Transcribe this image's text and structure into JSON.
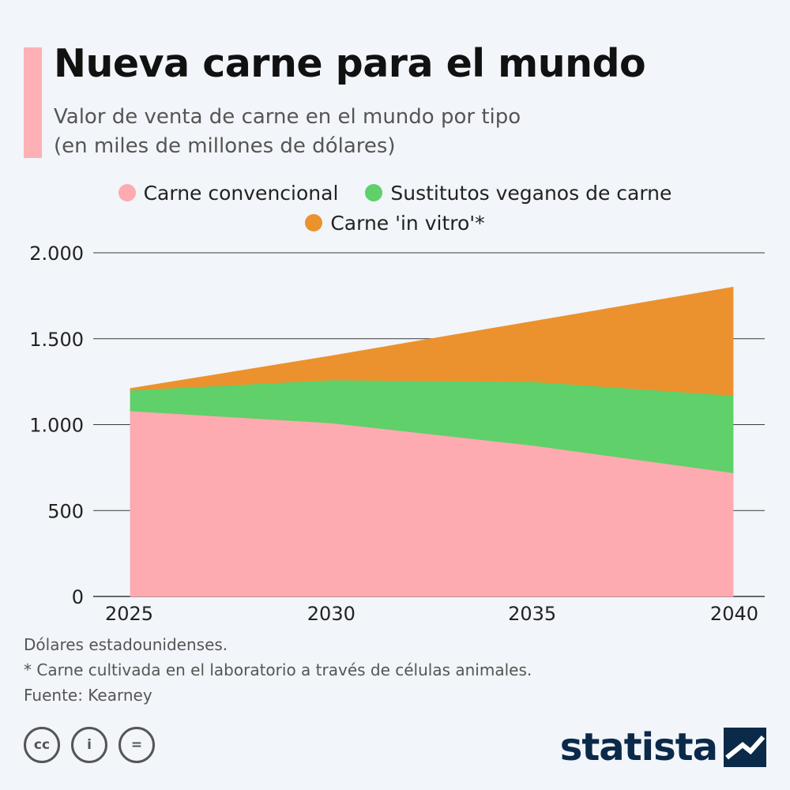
{
  "header": {
    "title": "Nueva carne para el mundo",
    "subtitle_line1": "Valor de venta de carne en el mundo por tipo",
    "subtitle_line2": "(en miles de millones de dólares)"
  },
  "colors": {
    "accent": "#fdb0b5",
    "conventional": "#fdaab0",
    "vegan": "#5fd06a",
    "in_vitro": "#eb922e",
    "grid": "#3a3a3a",
    "brand": "#0b2a4a"
  },
  "chart_data": {
    "type": "area",
    "stacked": true,
    "x": [
      2025,
      2030,
      2035,
      2040
    ],
    "x_tick_labels": [
      "2025",
      "2030",
      "2035",
      "2040"
    ],
    "series": [
      {
        "name": "Carne convencional",
        "values": [
          1080,
          1010,
          880,
          720
        ]
      },
      {
        "name": "Sustitutos veganos de carne",
        "values": [
          120,
          250,
          370,
          450
        ]
      },
      {
        "name": "Carne 'in vitro'*",
        "values": [
          10,
          140,
          350,
          630
        ]
      }
    ],
    "y_ticks": [
      0,
      500,
      1000,
      1500,
      2000
    ],
    "y_tick_labels": [
      "0",
      "500",
      "1.000",
      "1.500",
      "2.000"
    ],
    "ylim": [
      0,
      2000
    ],
    "xlabel": "",
    "ylabel": "",
    "grid": true,
    "legend_position": "top-center"
  },
  "notes": {
    "line1": "Dólares estadounidenses.",
    "line2": "* Carne cultivada en el laboratorio a través de células animales.",
    "line3": "Fuente: Kearney"
  },
  "footer": {
    "cc_label": "cc",
    "by_label": "i",
    "nd_label": "=",
    "brand": "statista"
  }
}
